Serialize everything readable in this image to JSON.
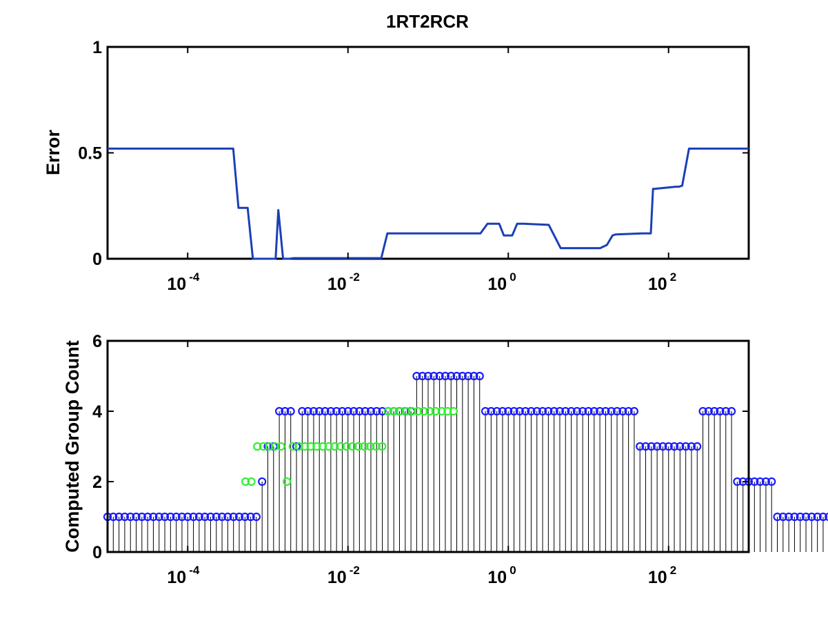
{
  "chart_data": [
    {
      "type": "line",
      "title": "1RT2RCR",
      "ylabel": "Error",
      "xlabel": "",
      "xscale": "log",
      "xlim": [
        1e-05,
        1000
      ],
      "ylim": [
        0,
        1
      ],
      "yticks": [
        "0",
        "0.5",
        "1"
      ],
      "xticks": [
        {
          "base": "10",
          "exp": "-4"
        },
        {
          "base": "10",
          "exp": "-2"
        },
        {
          "base": "10",
          "exp": "0"
        },
        {
          "base": "10",
          "exp": "2"
        }
      ],
      "grid": false,
      "colors": {
        "line": "#1a3fb8",
        "axis": "#000000"
      },
      "series": [
        {
          "x": [
            1e-05,
            0.00037,
            0.00043,
            0.00056,
            0.00065,
            0.0008,
            0.00085,
            0.00125,
            0.00135,
            0.00155,
            0.00185,
            0.0021,
            0.026,
            0.031,
            0.45,
            0.55,
            0.77,
            0.88,
            1.12,
            1.29,
            1.58,
            3.2,
            4.5,
            14,
            17,
            20,
            22,
            47,
            60,
            64,
            66,
            123,
            135,
            148,
            180,
            1000
          ],
          "y": [
            0.52,
            0.52,
            0.24,
            0.24,
            0.0,
            0.0,
            0.0,
            0.0,
            0.23,
            0.0,
            0.0,
            0.003,
            0.003,
            0.12,
            0.12,
            0.165,
            0.165,
            0.11,
            0.11,
            0.165,
            0.165,
            0.16,
            0.05,
            0.05,
            0.065,
            0.11,
            0.115,
            0.12,
            0.12,
            0.33,
            0.33,
            0.34,
            0.34,
            0.345,
            0.52,
            0.52
          ]
        }
      ]
    },
    {
      "type": "scatter",
      "subtype": "stem",
      "ylabel": "Computed Group Count",
      "xlabel": "",
      "xscale": "log",
      "xlim": [
        1e-05,
        1000
      ],
      "ylim": [
        0,
        6
      ],
      "yticks": [
        "0",
        "2",
        "4",
        "6"
      ],
      "xticks": [
        {
          "base": "10",
          "exp": "-4"
        },
        {
          "base": "10",
          "exp": "-2"
        },
        {
          "base": "10",
          "exp": "0"
        },
        {
          "base": "10",
          "exp": "2"
        }
      ],
      "grid": false,
      "colors": {
        "stem": "#000000",
        "axis": "#000000"
      },
      "series": [
        {
          "color": "#1a1aff",
          "x_log_start": -5,
          "x_log_step": 0.0714286,
          "values": [
            1,
            1,
            1,
            1,
            1,
            1,
            1,
            1,
            1,
            1,
            1,
            1,
            1,
            1,
            1,
            1,
            1,
            1,
            1,
            1,
            1,
            1,
            1,
            1,
            1,
            1,
            1,
            2,
            3,
            3,
            4,
            4,
            4,
            3,
            4,
            4,
            4,
            4,
            4,
            4,
            4,
            4,
            4,
            4,
            4,
            4,
            4,
            4,
            4,
            4,
            4,
            4,
            4,
            4,
            5,
            5,
            5,
            5,
            5,
            5,
            5,
            5,
            5,
            5,
            5,
            5,
            4,
            4,
            4,
            4,
            4,
            4,
            4,
            4,
            4,
            4,
            4,
            4,
            4,
            4,
            4,
            4,
            4,
            4,
            4,
            4,
            4,
            4,
            4,
            4,
            4,
            4,
            4,
            3,
            3,
            3,
            3,
            3,
            3,
            3,
            3,
            3,
            3,
            3,
            4,
            4,
            4,
            4,
            4,
            4,
            2,
            2,
            2,
            2,
            2,
            2,
            2,
            1,
            1,
            1,
            1,
            1,
            1,
            1,
            1,
            1,
            1,
            1,
            1
          ]
        },
        {
          "color": "#33ee33",
          "points": [
            {
              "x": 0.000526,
              "y": 2
            },
            {
              "x": 0.000623,
              "y": 2
            },
            {
              "x": 0.000739,
              "y": 3
            },
            {
              "x": 0.000877,
              "y": 3
            },
            {
              "x": 0.00104,
              "y": 3
            },
            {
              "x": 0.00123,
              "y": 3
            },
            {
              "x": 0.00146,
              "y": 3
            },
            {
              "x": 0.00173,
              "y": 2
            },
            {
              "x": 0.00205,
              "y": 3
            },
            {
              "x": 0.00244,
              "y": 3
            },
            {
              "x": 0.00289,
              "y": 3
            },
            {
              "x": 0.00343,
              "y": 3
            },
            {
              "x": 0.00407,
              "y": 3
            },
            {
              "x": 0.00483,
              "y": 3
            },
            {
              "x": 0.00573,
              "y": 3
            },
            {
              "x": 0.0068,
              "y": 3
            },
            {
              "x": 0.00806,
              "y": 3
            },
            {
              "x": 0.00957,
              "y": 3
            },
            {
              "x": 0.0114,
              "y": 3
            },
            {
              "x": 0.0135,
              "y": 3
            },
            {
              "x": 0.016,
              "y": 3
            },
            {
              "x": 0.019,
              "y": 3
            },
            {
              "x": 0.0225,
              "y": 3
            },
            {
              "x": 0.0267,
              "y": 3
            },
            {
              "x": 0.0317,
              "y": 4
            },
            {
              "x": 0.0376,
              "y": 4
            },
            {
              "x": 0.0446,
              "y": 4
            },
            {
              "x": 0.0529,
              "y": 4
            },
            {
              "x": 0.0628,
              "y": 4
            },
            {
              "x": 0.0745,
              "y": 4
            },
            {
              "x": 0.0884,
              "y": 4
            },
            {
              "x": 0.105,
              "y": 4
            },
            {
              "x": 0.124,
              "y": 4
            },
            {
              "x": 0.148,
              "y": 4
            },
            {
              "x": 0.175,
              "y": 4
            },
            {
              "x": 0.208,
              "y": 4
            }
          ]
        }
      ]
    }
  ]
}
